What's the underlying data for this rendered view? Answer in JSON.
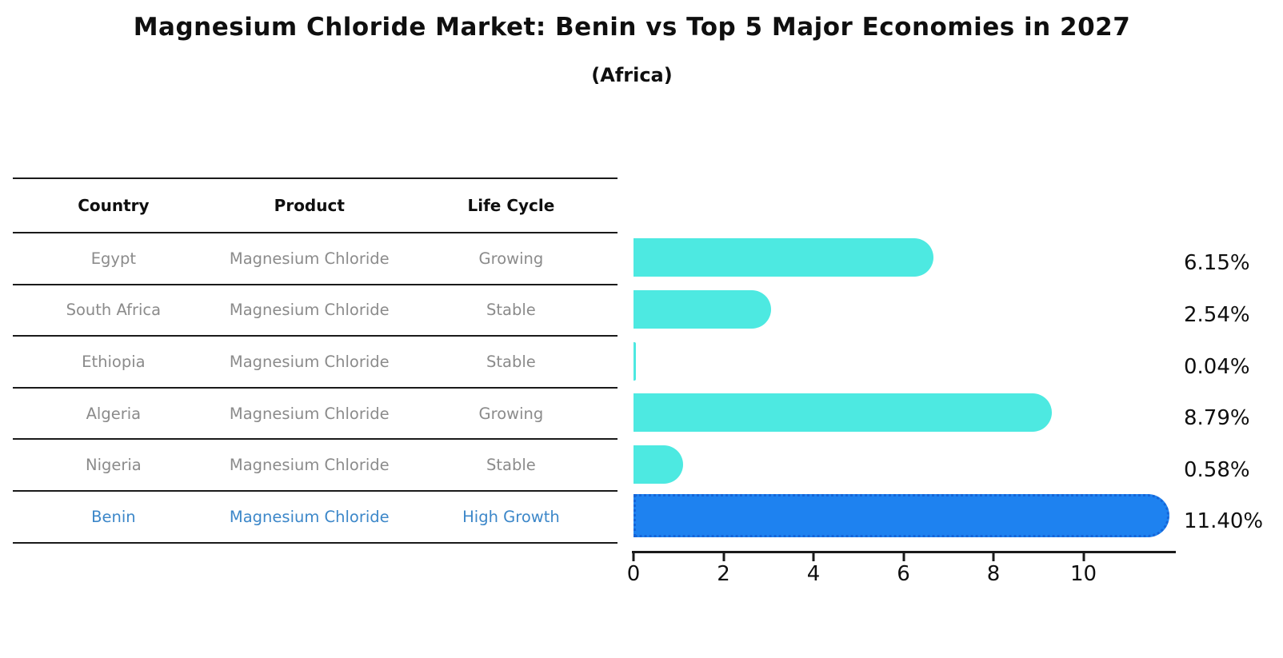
{
  "header": {
    "title": "Magnesium Chloride Market: Benin vs Top 5 Major Economies in 2027",
    "subtitle": "(Africa)"
  },
  "table": {
    "columns": [
      "Country",
      "Product",
      "Life Cycle"
    ],
    "rows": [
      {
        "country": "Egypt",
        "product": "Magnesium Chloride",
        "life_cycle": "Growing",
        "highlight": false
      },
      {
        "country": "South Africa",
        "product": "Magnesium Chloride",
        "life_cycle": "Stable",
        "highlight": false
      },
      {
        "country": "Ethiopia",
        "product": "Magnesium Chloride",
        "life_cycle": "Stable",
        "highlight": false
      },
      {
        "country": "Algeria",
        "product": "Magnesium Chloride",
        "life_cycle": "Growing",
        "highlight": false
      },
      {
        "country": "Nigeria",
        "product": "Magnesium Chloride",
        "life_cycle": "Stable",
        "highlight": false
      },
      {
        "country": "Benin",
        "product": "Magnesium Chloride",
        "life_cycle": "High Growth",
        "highlight": true
      }
    ],
    "text_color": "#8b8b8b",
    "highlight_text_color": "#3c87c9"
  },
  "chart_data": {
    "type": "bar",
    "orientation": "horizontal",
    "title": "Magnesium Chloride Market: Benin vs Top 5 Major Economies in 2027",
    "subtitle": "(Africa)",
    "categories": [
      "Egypt",
      "South Africa",
      "Ethiopia",
      "Algeria",
      "Nigeria",
      "Benin"
    ],
    "values": [
      6.15,
      2.54,
      0.04,
      8.79,
      0.58,
      11.4
    ],
    "value_labels": [
      "6.15%",
      "2.54%",
      "0.04%",
      "8.79%",
      "0.58%",
      "11.40%"
    ],
    "xlim": [
      0,
      12
    ],
    "xticks": [
      "0",
      "2",
      "4",
      "6",
      "8",
      "10"
    ],
    "grid": false,
    "legend": false,
    "bar_color": "#4de9e1",
    "highlight_bar_color": "#1e82f0",
    "highlight_index": 5,
    "axis_color": "#1a1a1a"
  }
}
